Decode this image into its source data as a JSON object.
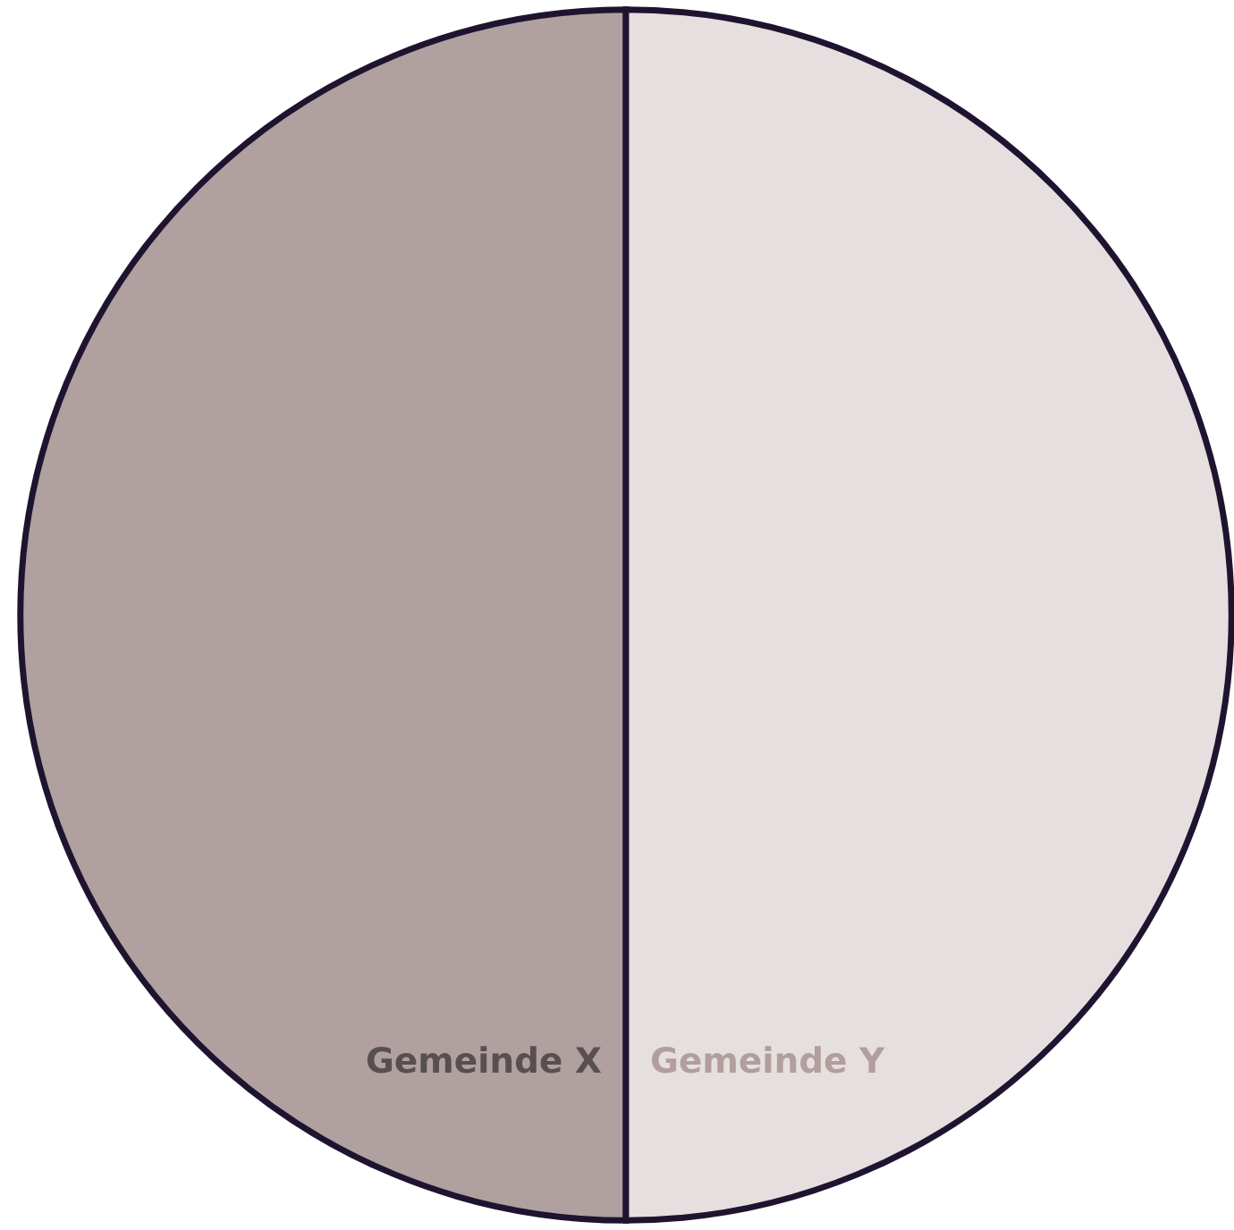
{
  "chart_data": {
    "type": "pie",
    "categories": [
      "Gemeinde X",
      "Gemeinde Y"
    ],
    "values": [
      50,
      50
    ],
    "colors": [
      "#b0a09f",
      "#e6dfe0"
    ]
  }
}
